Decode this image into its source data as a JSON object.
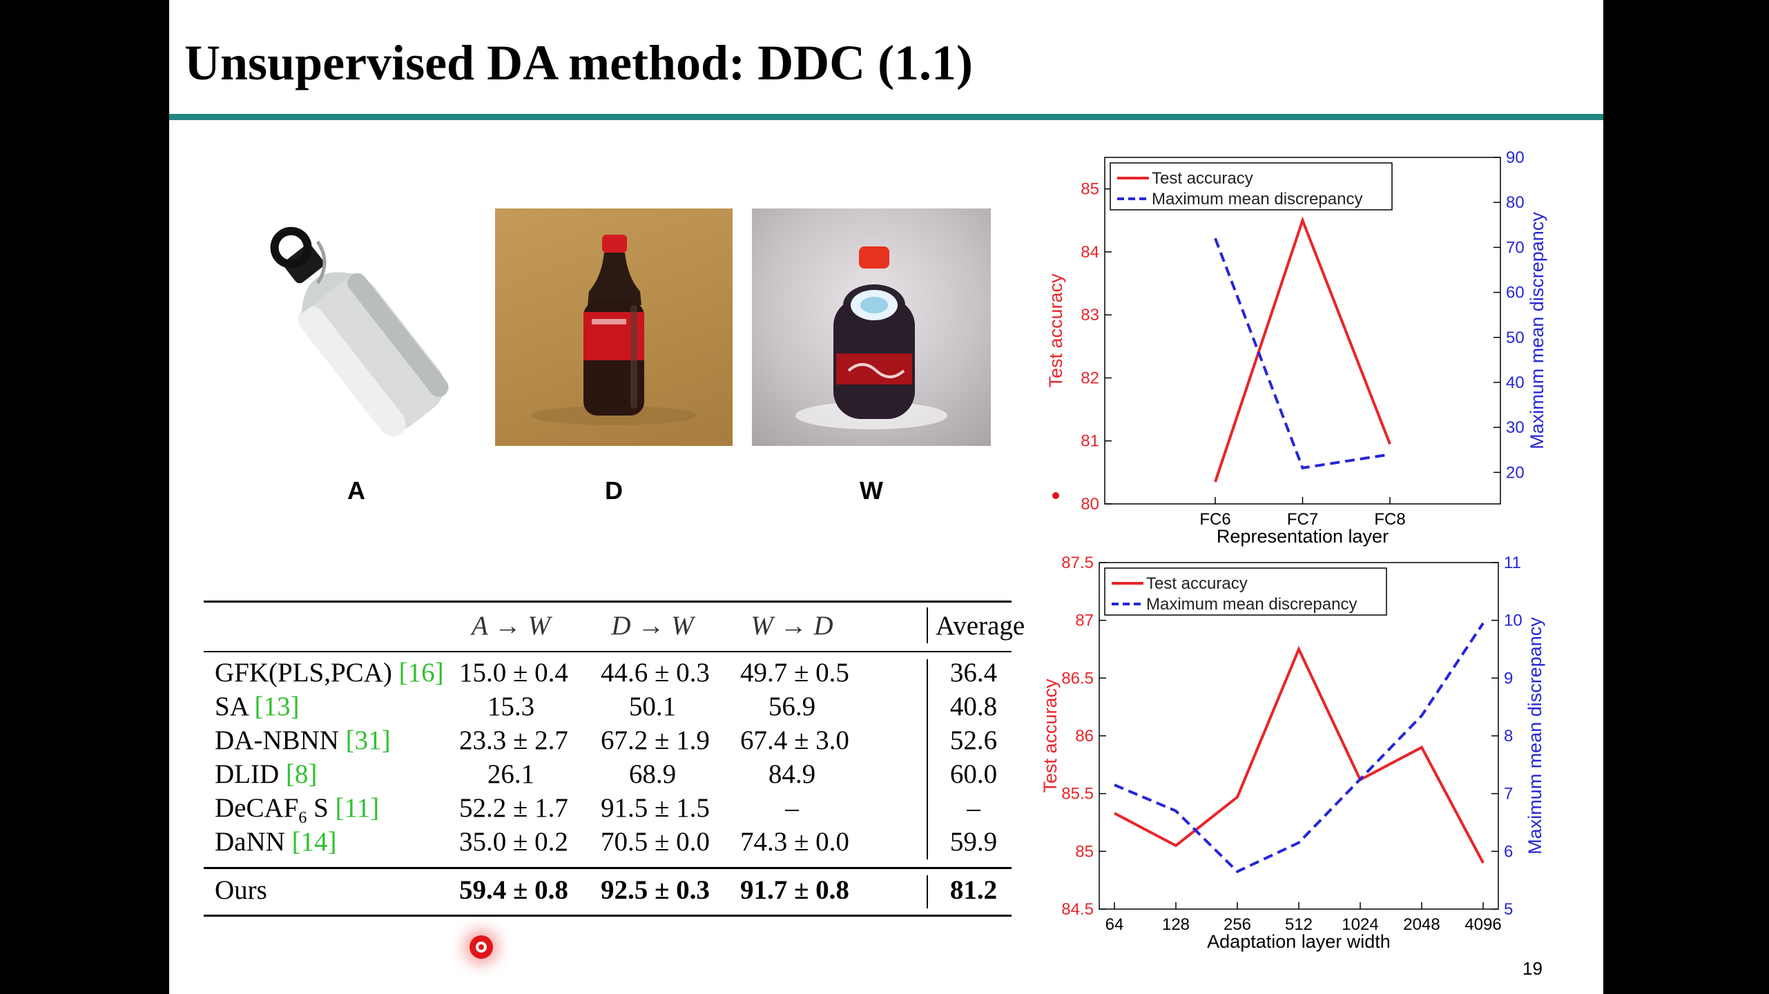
{
  "title": "Unsupervised DA method: DDC (1.1)",
  "page_number": "19",
  "images": [
    {
      "label": "A",
      "subject": "water-bottle"
    },
    {
      "label": "D",
      "subject": "coke-bottle"
    },
    {
      "label": "W",
      "subject": "coke-bottle"
    }
  ],
  "table": {
    "headers": [
      "A → W",
      "D → W",
      "W → D",
      "Average"
    ],
    "rows": [
      {
        "method": "GFK(PLS,PCA) ",
        "ref": "[16]",
        "sub": "",
        "method_after": "",
        "values": [
          "15.0 ± 0.4",
          "44.6 ± 0.3",
          "49.7 ± 0.5",
          "36.4"
        ]
      },
      {
        "method": "SA ",
        "ref": "[13]",
        "sub": "",
        "method_after": "",
        "values": [
          "15.3",
          "50.1",
          "56.9",
          "40.8"
        ]
      },
      {
        "method": "DA-NBNN ",
        "ref": "[31]",
        "sub": "",
        "method_after": "",
        "values": [
          "23.3 ± 2.7",
          "67.2 ± 1.9",
          "67.4 ± 3.0",
          "52.6"
        ]
      },
      {
        "method": "DLID ",
        "ref": "[8]",
        "sub": "",
        "method_after": "",
        "values": [
          "26.1",
          "68.9",
          "84.9",
          "60.0"
        ]
      },
      {
        "method": "DeCAF",
        "sub": "6",
        "method_after": " S ",
        "ref": "[11]",
        "values": [
          "52.2 ± 1.7",
          "91.5 ± 1.5",
          "–",
          "–"
        ]
      },
      {
        "method": "DaNN ",
        "ref": "[14]",
        "sub": "",
        "method_after": "",
        "values": [
          "35.0 ± 0.2",
          "70.5 ± 0.0",
          "74.3 ± 0.0",
          "59.9"
        ]
      }
    ],
    "ours": {
      "method": "Ours",
      "values": [
        "59.4 ± 0.8",
        "92.5 ± 0.3",
        "91.7 ± 0.8",
        "81.2"
      ]
    }
  },
  "chart_data": [
    {
      "type": "line",
      "xlabel": "Representation layer",
      "ylabel_left": "Test accuracy",
      "ylabel_right": "Maximum mean discrepancy",
      "x": [
        "FC6",
        "FC7",
        "FC8"
      ],
      "ylim_left": [
        80,
        85.5
      ],
      "ylim_right": [
        13,
        90
      ],
      "yticks_left": [
        "80",
        "81",
        "82",
        "83",
        "84",
        "85"
      ],
      "yticks_right": [
        "20",
        "30",
        "40",
        "50",
        "60",
        "70",
        "80",
        "90"
      ],
      "legend_position": "top-left",
      "series": [
        {
          "name": "Test accuracy",
          "axis": "left",
          "color": "#e8262b",
          "style": "solid",
          "values": [
            80.35,
            84.5,
            80.95
          ]
        },
        {
          "name": "Maximum mean discrepancy",
          "axis": "right",
          "color": "#2626d8",
          "style": "dashed",
          "values": [
            72,
            21,
            24
          ]
        }
      ]
    },
    {
      "type": "line",
      "xlabel": "Adaptation layer width",
      "ylabel_left": "Test accuracy",
      "ylabel_right": "Maximum mean discrepancy",
      "x": [
        "64",
        "128",
        "256",
        "512",
        "1024",
        "2048",
        "4096"
      ],
      "ylim_left": [
        84.5,
        87.5
      ],
      "ylim_right": [
        5,
        11
      ],
      "yticks_left": [
        "84.5",
        "85",
        "85.5",
        "86",
        "86.5",
        "87",
        "87.5"
      ],
      "yticks_right": [
        "5",
        "6",
        "7",
        "8",
        "9",
        "10",
        "11"
      ],
      "legend_position": "top-left",
      "series": [
        {
          "name": "Test accuracy",
          "axis": "left",
          "color": "#e8262b",
          "style": "solid",
          "values": [
            85.33,
            85.05,
            85.47,
            86.75,
            85.62,
            85.9,
            84.9
          ]
        },
        {
          "name": "Maximum mean discrepancy",
          "axis": "right",
          "color": "#2626d8",
          "style": "dashed",
          "values": [
            7.15,
            6.7,
            5.65,
            6.15,
            7.25,
            8.35,
            9.95
          ]
        }
      ]
    }
  ]
}
